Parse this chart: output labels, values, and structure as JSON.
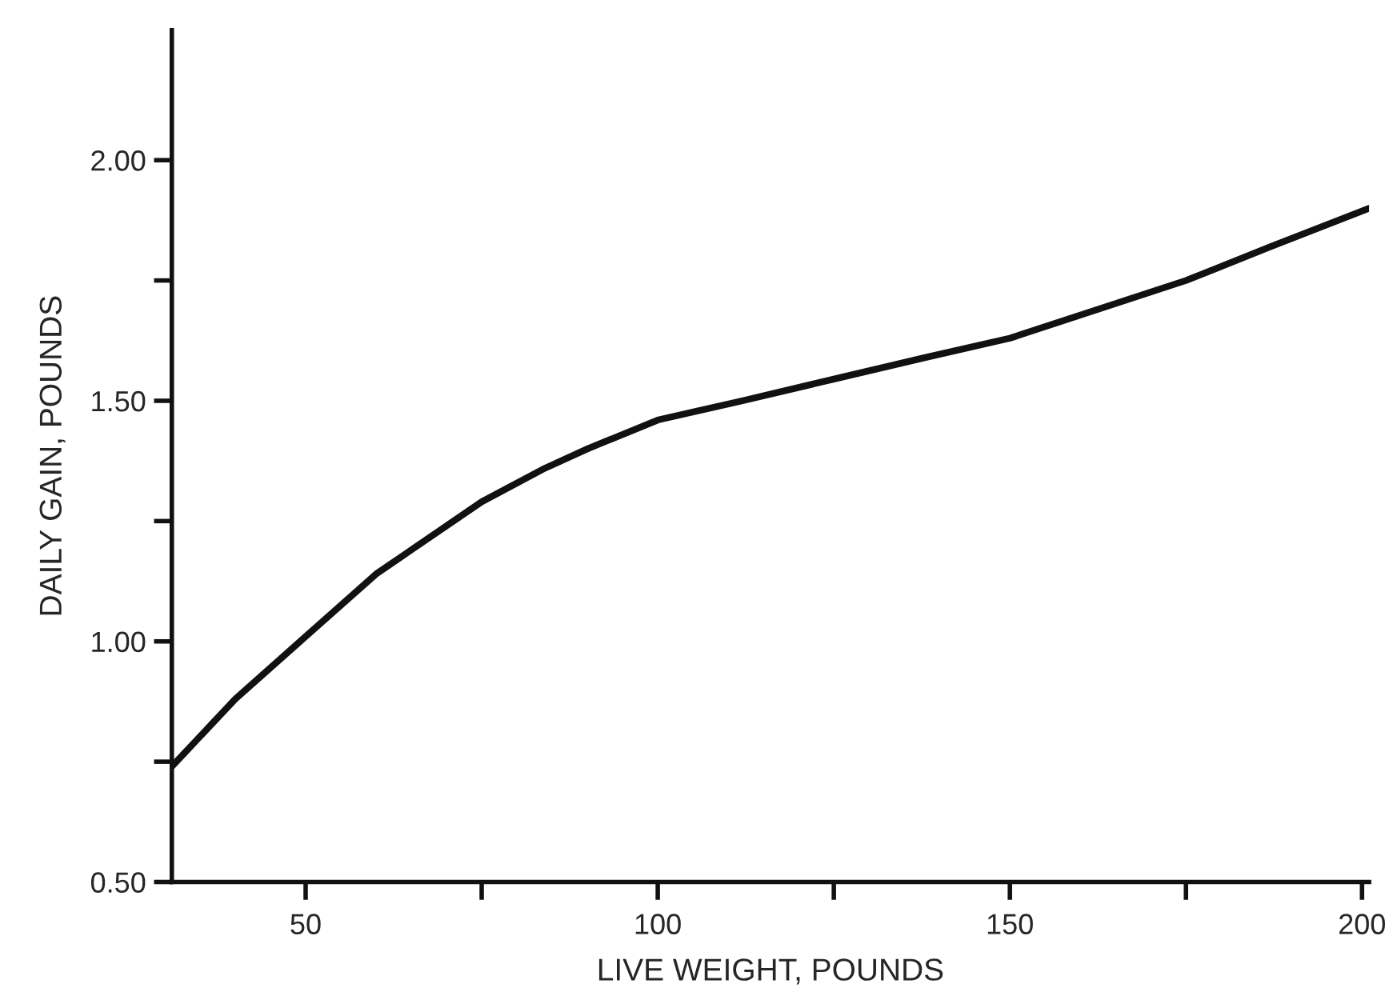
{
  "chart_data": {
    "type": "line",
    "xlabel": "LIVE WEIGHT, POUNDS",
    "ylabel": "DAILY GAIN, POUNDS",
    "x": [
      31,
      40,
      50,
      60,
      75,
      84,
      90,
      100,
      112,
      125,
      138,
      150,
      175,
      187,
      201
    ],
    "series": [
      {
        "color": "#111111",
        "values": [
          0.74,
          0.88,
          1.01,
          1.14,
          1.29,
          1.36,
          1.4,
          1.46,
          1.5,
          1.545,
          1.59,
          1.63,
          1.75,
          1.82,
          1.9
        ]
      }
    ],
    "xlim": [
      31,
      201
    ],
    "ylim": [
      0.5,
      2.27
    ],
    "xticks": [
      50,
      {
        "value": 75,
        "label": null
      },
      100,
      {
        "value": 125,
        "label": null
      },
      150,
      {
        "value": 175,
        "label": null
      },
      200
    ],
    "yticks": [
      {
        "value": 0.5,
        "label": "0.50"
      },
      {
        "value": 0.75,
        "label": null
      },
      {
        "value": 1.0,
        "label": "1.00"
      },
      {
        "value": 1.25,
        "label": null
      },
      {
        "value": 1.5,
        "label": "1.50"
      },
      {
        "value": 1.75,
        "label": null
      },
      {
        "value": 2.0,
        "label": "2.00"
      }
    ],
    "grid": false,
    "legend": false,
    "line_style": "solid",
    "marker": "none"
  }
}
